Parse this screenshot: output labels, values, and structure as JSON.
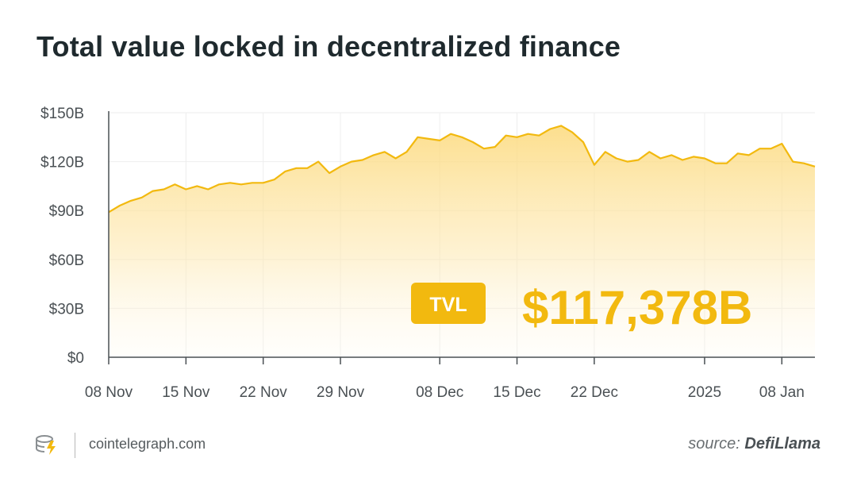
{
  "chart_data": {
    "type": "area",
    "title": "Total value locked in decentralized finance",
    "xlabel": "",
    "ylabel": "",
    "ylim": [
      0,
      150
    ],
    "y_ticks": [
      "$0",
      "$30B",
      "$60B",
      "$90B",
      "$120B",
      "$150B"
    ],
    "y_tick_values": [
      0,
      30,
      60,
      90,
      120,
      150
    ],
    "x_ticks": [
      "08 Nov",
      "15 Nov",
      "22 Nov",
      "29 Nov",
      "08 Dec",
      "15 Dec",
      "22 Dec",
      "2025",
      "08 Jan"
    ],
    "x_tick_values": [
      "2024-11-08",
      "2024-11-15",
      "2024-11-22",
      "2024-11-29",
      "2024-12-08",
      "2024-12-15",
      "2024-12-22",
      "2025-01-01",
      "2025-01-08"
    ],
    "grid": true,
    "series": [
      {
        "color": "#f2b90f",
        "points": [
          [
            "2024-11-08",
            89
          ],
          [
            "2024-11-09",
            93
          ],
          [
            "2024-11-10",
            96
          ],
          [
            "2024-11-11",
            98
          ],
          [
            "2024-11-12",
            102
          ],
          [
            "2024-11-13",
            103
          ],
          [
            "2024-11-14",
            106
          ],
          [
            "2024-11-15",
            103
          ],
          [
            "2024-11-16",
            105
          ],
          [
            "2024-11-17",
            103
          ],
          [
            "2024-11-18",
            106
          ],
          [
            "2024-11-19",
            107
          ],
          [
            "2024-11-20",
            106
          ],
          [
            "2024-11-21",
            107
          ],
          [
            "2024-11-22",
            107
          ],
          [
            "2024-11-23",
            109
          ],
          [
            "2024-11-24",
            114
          ],
          [
            "2024-11-25",
            116
          ],
          [
            "2024-11-26",
            116
          ],
          [
            "2024-11-27",
            120
          ],
          [
            "2024-11-28",
            113
          ],
          [
            "2024-11-29",
            117
          ],
          [
            "2024-11-30",
            120
          ],
          [
            "2024-12-01",
            121
          ],
          [
            "2024-12-02",
            124
          ],
          [
            "2024-12-03",
            126
          ],
          [
            "2024-12-04",
            122
          ],
          [
            "2024-12-05",
            126
          ],
          [
            "2024-12-06",
            135
          ],
          [
            "2024-12-07",
            134
          ],
          [
            "2024-12-08",
            133
          ],
          [
            "2024-12-09",
            137
          ],
          [
            "2024-12-10",
            135
          ],
          [
            "2024-12-11",
            132
          ],
          [
            "2024-12-12",
            128
          ],
          [
            "2024-12-13",
            129
          ],
          [
            "2024-12-14",
            136
          ],
          [
            "2024-12-15",
            135
          ],
          [
            "2024-12-16",
            137
          ],
          [
            "2024-12-17",
            136
          ],
          [
            "2024-12-18",
            140
          ],
          [
            "2024-12-19",
            142
          ],
          [
            "2024-12-20",
            138
          ],
          [
            "2024-12-21",
            132
          ],
          [
            "2024-12-22",
            118
          ],
          [
            "2024-12-23",
            126
          ],
          [
            "2024-12-24",
            122
          ],
          [
            "2024-12-25",
            120
          ],
          [
            "2024-12-26",
            121
          ],
          [
            "2024-12-27",
            126
          ],
          [
            "2024-12-28",
            122
          ],
          [
            "2024-12-29",
            124
          ],
          [
            "2024-12-30",
            121
          ],
          [
            "2024-12-31",
            123
          ],
          [
            "2025-01-01",
            122
          ],
          [
            "2025-01-02",
            119
          ],
          [
            "2025-01-03",
            119
          ],
          [
            "2025-01-04",
            125
          ],
          [
            "2025-01-05",
            124
          ],
          [
            "2025-01-06",
            128
          ],
          [
            "2025-01-07",
            128
          ],
          [
            "2025-01-08",
            131
          ],
          [
            "2025-01-09",
            120
          ],
          [
            "2025-01-10",
            119
          ],
          [
            "2025-01-11",
            117
          ]
        ]
      }
    ],
    "annotation": {
      "badge": "TVL",
      "value": "$117,378B"
    }
  },
  "footer": {
    "site": "cointelegraph.com",
    "source_prefix": "source: ",
    "source_name": "DefiLlama"
  },
  "colors": {
    "accent": "#f2b90f",
    "title": "#1f2a2e",
    "axis_text": "#4a5054"
  }
}
